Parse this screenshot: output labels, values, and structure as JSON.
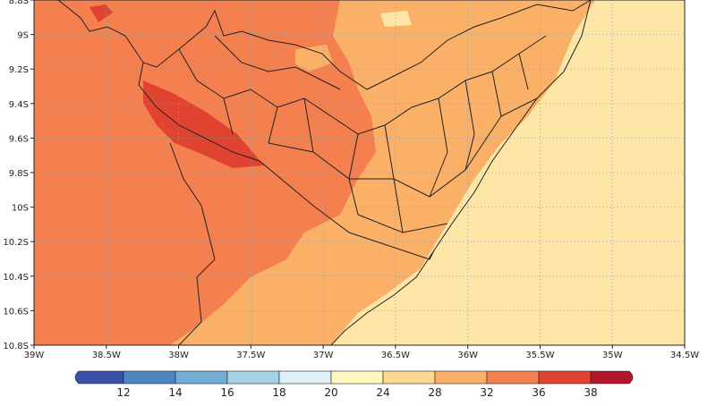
{
  "map": {
    "x_ticks": [
      "39W",
      "38.5W",
      "38W",
      "37.5W",
      "37W",
      "36.5W",
      "36W",
      "35.5W",
      "35W",
      "34.5W"
    ],
    "y_ticks": [
      "8.8S",
      "9S",
      "9.2S",
      "9.4S",
      "9.6S",
      "9.8S",
      "10S",
      "10.2S",
      "10.4S",
      "10.6S",
      "10.8S"
    ]
  },
  "colorbar": {
    "levels": [
      12,
      14,
      16,
      18,
      20,
      24,
      28,
      32,
      36,
      38
    ],
    "colors": [
      "#3a4fa8",
      "#4d86c2",
      "#74aed6",
      "#a5d3e6",
      "#dff1f6",
      "#fff8bf",
      "#fdd88e",
      "#fbb067",
      "#f47f4f",
      "#e04430",
      "#b3172b"
    ]
  }
}
